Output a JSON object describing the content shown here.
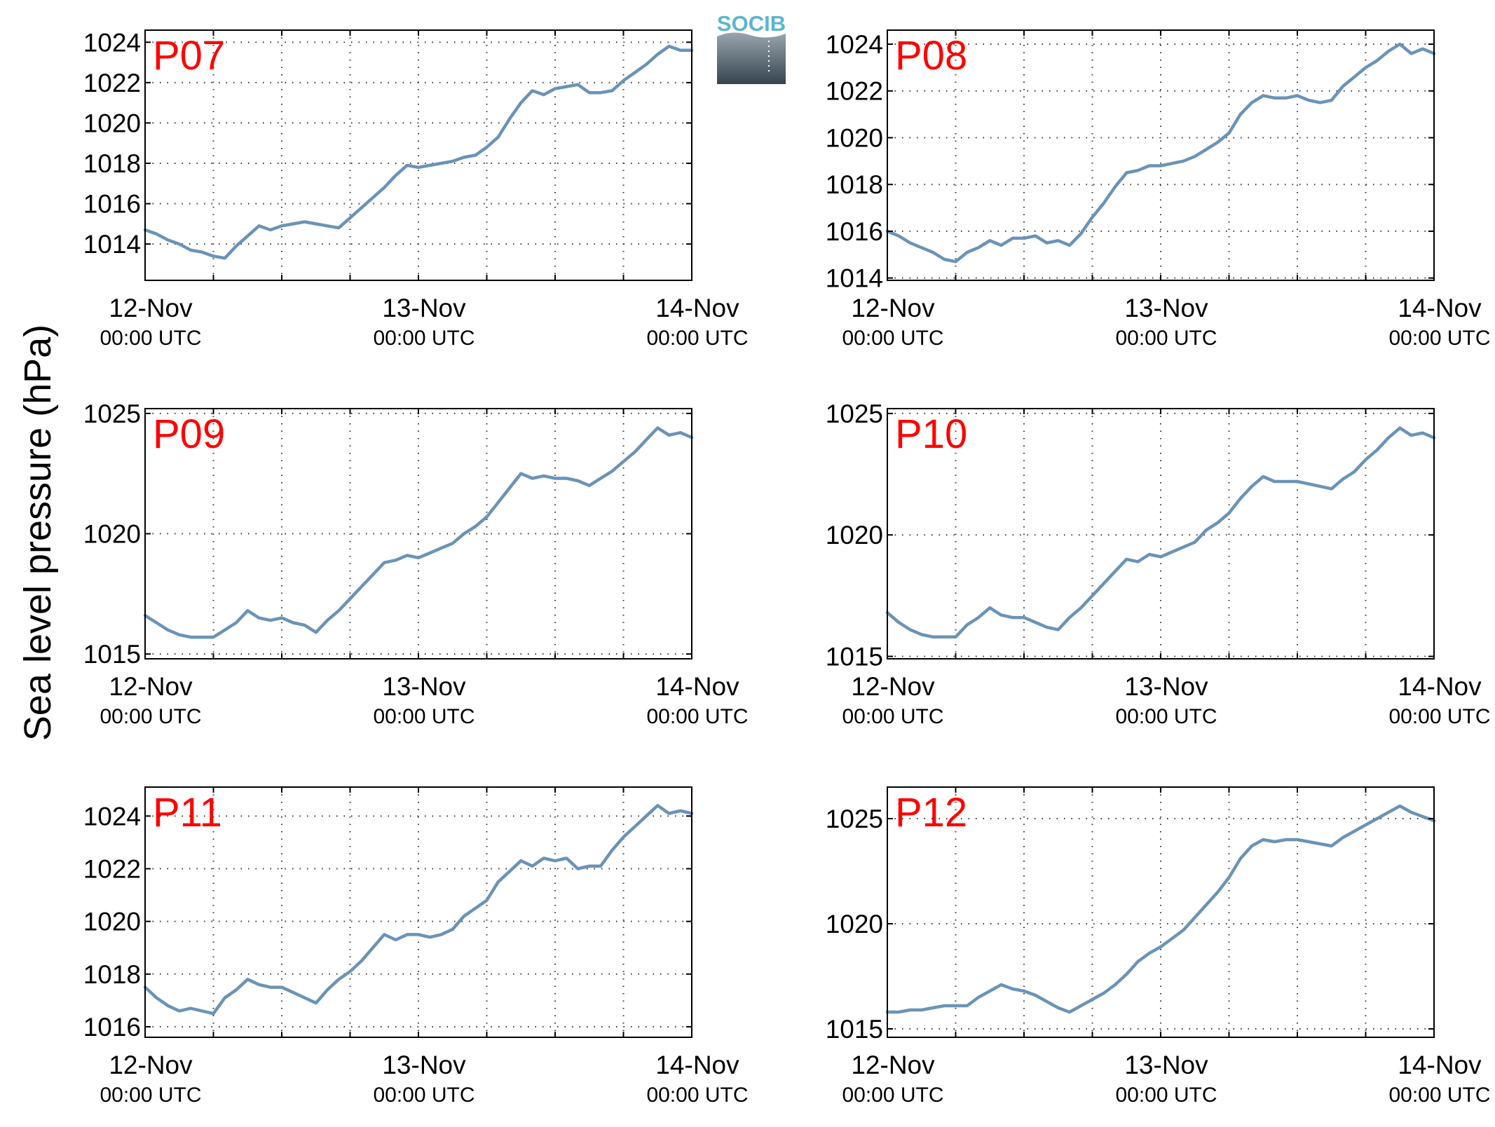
{
  "figure": {
    "ylabel": "Sea level pressure (hPa)",
    "logo_text": "SOCIB",
    "line_color": "#6a93b8",
    "label_color": "#ff0000",
    "logo_color": "#5bb6cd"
  },
  "chart_data": [
    {
      "type": "line",
      "title": "P07",
      "x_ticks": [
        {
          "date": "12-Nov",
          "time": "00:00 UTC"
        },
        {
          "date": "13-Nov",
          "time": "00:00 UTC"
        },
        {
          "date": "14-Nov",
          "time": "00:00 UTC"
        }
      ],
      "xlim_hours": [
        0,
        48
      ],
      "ylim": [
        1012.2,
        1024.6
      ],
      "yticks": [
        1014,
        1016,
        1018,
        1020,
        1022,
        1024
      ],
      "grid": true,
      "series": [
        {
          "x": [
            0,
            1,
            2,
            3,
            4,
            5,
            6,
            7,
            8,
            9,
            10,
            11,
            12,
            13,
            14,
            15,
            16,
            17,
            18,
            19,
            20,
            21,
            22,
            23,
            24,
            25,
            26,
            27,
            28,
            29,
            30,
            31,
            32,
            33,
            34,
            35,
            36,
            37,
            38,
            39,
            40,
            41,
            42,
            43,
            44,
            45,
            46,
            47,
            48
          ],
          "values": [
            1014.7,
            1014.5,
            1014.2,
            1014.0,
            1013.7,
            1013.6,
            1013.4,
            1013.3,
            1013.9,
            1014.4,
            1014.9,
            1014.7,
            1014.9,
            1015.0,
            1015.1,
            1015.0,
            1014.9,
            1014.8,
            1015.3,
            1015.8,
            1016.3,
            1016.8,
            1017.4,
            1017.9,
            1017.8,
            1017.9,
            1018.0,
            1018.1,
            1018.3,
            1018.4,
            1018.8,
            1019.3,
            1020.2,
            1021.0,
            1021.6,
            1021.4,
            1021.7,
            1021.8,
            1021.9,
            1021.5,
            1021.5,
            1021.6,
            1022.1,
            1022.5,
            1022.9,
            1023.4,
            1023.8,
            1023.6,
            1023.6
          ]
        }
      ]
    },
    {
      "type": "line",
      "title": "P08",
      "x_ticks": [
        {
          "date": "12-Nov",
          "time": "00:00 UTC"
        },
        {
          "date": "13-Nov",
          "time": "00:00 UTC"
        },
        {
          "date": "14-Nov",
          "time": "00:00 UTC"
        }
      ],
      "xlim_hours": [
        0,
        48
      ],
      "ylim": [
        1013.9,
        1024.6
      ],
      "yticks": [
        1014,
        1016,
        1018,
        1020,
        1022,
        1024
      ],
      "grid": true,
      "series": [
        {
          "x": [
            0,
            1,
            2,
            3,
            4,
            5,
            6,
            7,
            8,
            9,
            10,
            11,
            12,
            13,
            14,
            15,
            16,
            17,
            18,
            19,
            20,
            21,
            22,
            23,
            24,
            25,
            26,
            27,
            28,
            29,
            30,
            31,
            32,
            33,
            34,
            35,
            36,
            37,
            38,
            39,
            40,
            41,
            42,
            43,
            44,
            45,
            46,
            47,
            48
          ],
          "values": [
            1016.0,
            1015.8,
            1015.5,
            1015.3,
            1015.1,
            1014.8,
            1014.7,
            1015.1,
            1015.3,
            1015.6,
            1015.4,
            1015.7,
            1015.7,
            1015.8,
            1015.5,
            1015.6,
            1015.4,
            1015.9,
            1016.6,
            1017.2,
            1017.9,
            1018.5,
            1018.6,
            1018.8,
            1018.8,
            1018.9,
            1019.0,
            1019.2,
            1019.5,
            1019.8,
            1020.2,
            1021.0,
            1021.5,
            1021.8,
            1021.7,
            1021.7,
            1021.8,
            1021.6,
            1021.5,
            1021.6,
            1022.2,
            1022.6,
            1023.0,
            1023.3,
            1023.7,
            1024.0,
            1023.6,
            1023.8,
            1023.6
          ]
        }
      ]
    },
    {
      "type": "line",
      "title": "P09",
      "x_ticks": [
        {
          "date": "12-Nov",
          "time": "00:00 UTC"
        },
        {
          "date": "13-Nov",
          "time": "00:00 UTC"
        },
        {
          "date": "14-Nov",
          "time": "00:00 UTC"
        }
      ],
      "xlim_hours": [
        0,
        48
      ],
      "ylim": [
        1014.8,
        1025.2
      ],
      "yticks": [
        1015,
        1020,
        1025
      ],
      "grid": true,
      "series": [
        {
          "x": [
            0,
            1,
            2,
            3,
            4,
            5,
            6,
            7,
            8,
            9,
            10,
            11,
            12,
            13,
            14,
            15,
            16,
            17,
            18,
            19,
            20,
            21,
            22,
            23,
            24,
            25,
            26,
            27,
            28,
            29,
            30,
            31,
            32,
            33,
            34,
            35,
            36,
            37,
            38,
            39,
            40,
            41,
            42,
            43,
            44,
            45,
            46,
            47,
            48
          ],
          "values": [
            1016.6,
            1016.3,
            1016.0,
            1015.8,
            1015.7,
            1015.7,
            1015.7,
            1016.0,
            1016.3,
            1016.8,
            1016.5,
            1016.4,
            1016.5,
            1016.3,
            1016.2,
            1015.9,
            1016.4,
            1016.8,
            1017.3,
            1017.8,
            1018.3,
            1018.8,
            1018.9,
            1019.1,
            1019.0,
            1019.2,
            1019.4,
            1019.6,
            1020.0,
            1020.3,
            1020.7,
            1021.3,
            1021.9,
            1022.5,
            1022.3,
            1022.4,
            1022.3,
            1022.3,
            1022.2,
            1022.0,
            1022.3,
            1022.6,
            1023.0,
            1023.4,
            1023.9,
            1024.4,
            1024.1,
            1024.2,
            1024.0
          ]
        }
      ]
    },
    {
      "type": "line",
      "title": "P10",
      "x_ticks": [
        {
          "date": "12-Nov",
          "time": "00:00 UTC"
        },
        {
          "date": "13-Nov",
          "time": "00:00 UTC"
        },
        {
          "date": "14-Nov",
          "time": "00:00 UTC"
        }
      ],
      "xlim_hours": [
        0,
        48
      ],
      "ylim": [
        1014.9,
        1025.2
      ],
      "yticks": [
        1015,
        1020,
        1025
      ],
      "grid": true,
      "series": [
        {
          "x": [
            0,
            1,
            2,
            3,
            4,
            5,
            6,
            7,
            8,
            9,
            10,
            11,
            12,
            13,
            14,
            15,
            16,
            17,
            18,
            19,
            20,
            21,
            22,
            23,
            24,
            25,
            26,
            27,
            28,
            29,
            30,
            31,
            32,
            33,
            34,
            35,
            36,
            37,
            38,
            39,
            40,
            41,
            42,
            43,
            44,
            45,
            46,
            47,
            48
          ],
          "values": [
            1016.8,
            1016.4,
            1016.1,
            1015.9,
            1015.8,
            1015.8,
            1015.8,
            1016.3,
            1016.6,
            1017.0,
            1016.7,
            1016.6,
            1016.6,
            1016.4,
            1016.2,
            1016.1,
            1016.6,
            1017.0,
            1017.5,
            1018.0,
            1018.5,
            1019.0,
            1018.9,
            1019.2,
            1019.1,
            1019.3,
            1019.5,
            1019.7,
            1020.2,
            1020.5,
            1020.9,
            1021.5,
            1022.0,
            1022.4,
            1022.2,
            1022.2,
            1022.2,
            1022.1,
            1022.0,
            1021.9,
            1022.3,
            1022.6,
            1023.1,
            1023.5,
            1024.0,
            1024.4,
            1024.1,
            1024.2,
            1024.0
          ]
        }
      ]
    },
    {
      "type": "line",
      "title": "P11",
      "x_ticks": [
        {
          "date": "12-Nov",
          "time": "00:00 UTC"
        },
        {
          "date": "13-Nov",
          "time": "00:00 UTC"
        },
        {
          "date": "14-Nov",
          "time": "00:00 UTC"
        }
      ],
      "xlim_hours": [
        0,
        48
      ],
      "ylim": [
        1015.6,
        1025.1
      ],
      "yticks": [
        1016,
        1018,
        1020,
        1022,
        1024
      ],
      "grid": true,
      "series": [
        {
          "x": [
            0,
            1,
            2,
            3,
            4,
            5,
            6,
            7,
            8,
            9,
            10,
            11,
            12,
            13,
            14,
            15,
            16,
            17,
            18,
            19,
            20,
            21,
            22,
            23,
            24,
            25,
            26,
            27,
            28,
            29,
            30,
            31,
            32,
            33,
            34,
            35,
            36,
            37,
            38,
            39,
            40,
            41,
            42,
            43,
            44,
            45,
            46,
            47,
            48
          ],
          "values": [
            1017.5,
            1017.1,
            1016.8,
            1016.6,
            1016.7,
            1016.6,
            1016.5,
            1017.1,
            1017.4,
            1017.8,
            1017.6,
            1017.5,
            1017.5,
            1017.3,
            1017.1,
            1016.9,
            1017.4,
            1017.8,
            1018.1,
            1018.5,
            1019.0,
            1019.5,
            1019.3,
            1019.5,
            1019.5,
            1019.4,
            1019.5,
            1019.7,
            1020.2,
            1020.5,
            1020.8,
            1021.5,
            1021.9,
            1022.3,
            1022.1,
            1022.4,
            1022.3,
            1022.4,
            1022.0,
            1022.1,
            1022.1,
            1022.7,
            1023.2,
            1023.6,
            1024.0,
            1024.4,
            1024.1,
            1024.2,
            1024.1
          ]
        }
      ]
    },
    {
      "type": "line",
      "title": "P12",
      "x_ticks": [
        {
          "date": "12-Nov",
          "time": "00:00 UTC"
        },
        {
          "date": "13-Nov",
          "time": "00:00 UTC"
        },
        {
          "date": "14-Nov",
          "time": "00:00 UTC"
        }
      ],
      "xlim_hours": [
        0,
        48
      ],
      "ylim": [
        1014.6,
        1026.5
      ],
      "yticks": [
        1015,
        1020,
        1025
      ],
      "grid": true,
      "series": [
        {
          "x": [
            0,
            1,
            2,
            3,
            4,
            5,
            6,
            7,
            8,
            9,
            10,
            11,
            12,
            13,
            14,
            15,
            16,
            17,
            18,
            19,
            20,
            21,
            22,
            23,
            24,
            25,
            26,
            27,
            28,
            29,
            30,
            31,
            32,
            33,
            34,
            35,
            36,
            37,
            38,
            39,
            40,
            41,
            42,
            43,
            44,
            45,
            46,
            47,
            48
          ],
          "values": [
            1015.8,
            1015.8,
            1015.9,
            1015.9,
            1016.0,
            1016.1,
            1016.1,
            1016.1,
            1016.5,
            1016.8,
            1017.1,
            1016.9,
            1016.8,
            1016.6,
            1016.3,
            1016.0,
            1015.8,
            1016.1,
            1016.4,
            1016.7,
            1017.1,
            1017.6,
            1018.2,
            1018.6,
            1018.9,
            1019.3,
            1019.7,
            1020.3,
            1020.9,
            1021.5,
            1022.2,
            1023.1,
            1023.7,
            1024.0,
            1023.9,
            1024.0,
            1024.0,
            1023.9,
            1023.8,
            1023.7,
            1024.1,
            1024.4,
            1024.7,
            1025.0,
            1025.3,
            1025.6,
            1025.3,
            1025.1,
            1024.9
          ]
        }
      ]
    }
  ]
}
